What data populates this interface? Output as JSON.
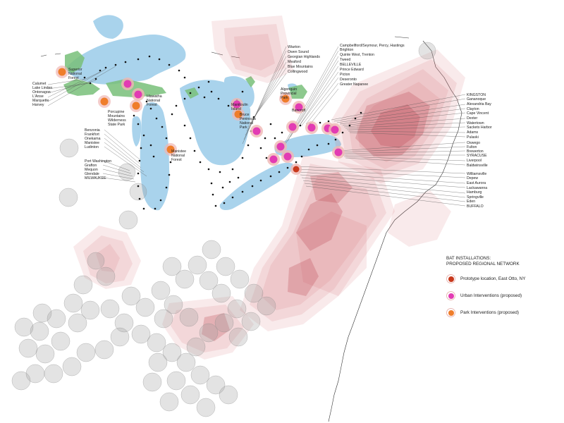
{
  "colors": {
    "water": "#a9d3ec",
    "park": "#79c07a",
    "network": "#cf5b62",
    "buffer_gray": "#9a9a9a",
    "prototype": "#c8391c",
    "urban": "#e23bb3",
    "park_intervention": "#ef7d2b",
    "ring": "#efb6b3"
  },
  "legend": {
    "title_line1": "BAT INSTALLATIONS:",
    "title_line2": "PROPOSED REGIONAL NETWORK",
    "items": [
      {
        "label": "Prototype location, East Otto, NY",
        "color": "#c8391c"
      },
      {
        "label": "Urban Interventions (proposed)",
        "color": "#e23bb3"
      },
      {
        "label": "Park Interventions (proposed)",
        "color": "#ef7d2b"
      }
    ]
  },
  "labels": {
    "west": [
      "Calumet",
      "Lake Linden",
      "Ontonagon",
      "L'Anse",
      "Marquette",
      "Harvey"
    ],
    "michigan_west": [
      "Benzonia",
      "Frankfort",
      "Onekama",
      "Manistee",
      "Ludinton"
    ],
    "wisconsin": [
      "Port Washington",
      "Grafton",
      "Mequon",
      "Glendale",
      "MILWAUKEE"
    ],
    "georgian": [
      "Wiarton",
      "Owen Sound",
      "Georgian Highlands",
      "Meaford",
      "Blue Mountains",
      "Collingwood"
    ],
    "ontario_north": [
      "Campbellford/Seymour, Percy, Hastings",
      "Brighton",
      "Quinte West, Trenton",
      "Tweed",
      "BELLEVILLE",
      "Prince Edward",
      "Picton",
      "Deseronto",
      "Greater Napanee"
    ],
    "ny_north": [
      "KINGSTON",
      "Gananoque",
      "Alexandria Bay",
      "Clayton",
      "Cape Vincent",
      "Dexter",
      "Watertown",
      "Sackets Harbor",
      "Adams",
      "Pulaski"
    ],
    "ny_mid": [
      "Oswego",
      "Fulton",
      "Brewerton",
      "SYRACUSE",
      "Liverpool",
      "Baldwinsville"
    ],
    "ny_west": [
      "Williamsville",
      "Depew",
      "East Aurora",
      "Lackawanna",
      "Hamburg",
      "Springville",
      "Eden",
      "BUFFALO"
    ],
    "parks": {
      "superior": [
        "Superior",
        "National",
        "Forest"
      ],
      "hiawatha": [
        "Hiawatha",
        "National",
        "Forest"
      ],
      "porcupine": [
        "Porcupine",
        "Mountains",
        "Wilderness",
        "State Park"
      ],
      "manistee": [
        "Manistee",
        "National",
        "Forest"
      ],
      "algonquin": [
        "Algonquin",
        "Provincial",
        "Park"
      ],
      "bruce": [
        "Bruce",
        "Peninsula",
        "National",
        "Park"
      ],
      "manitoulin": [
        "Manitoulin",
        "Island"
      ],
      "bancroft": [
        "Bancroft"
      ]
    }
  }
}
